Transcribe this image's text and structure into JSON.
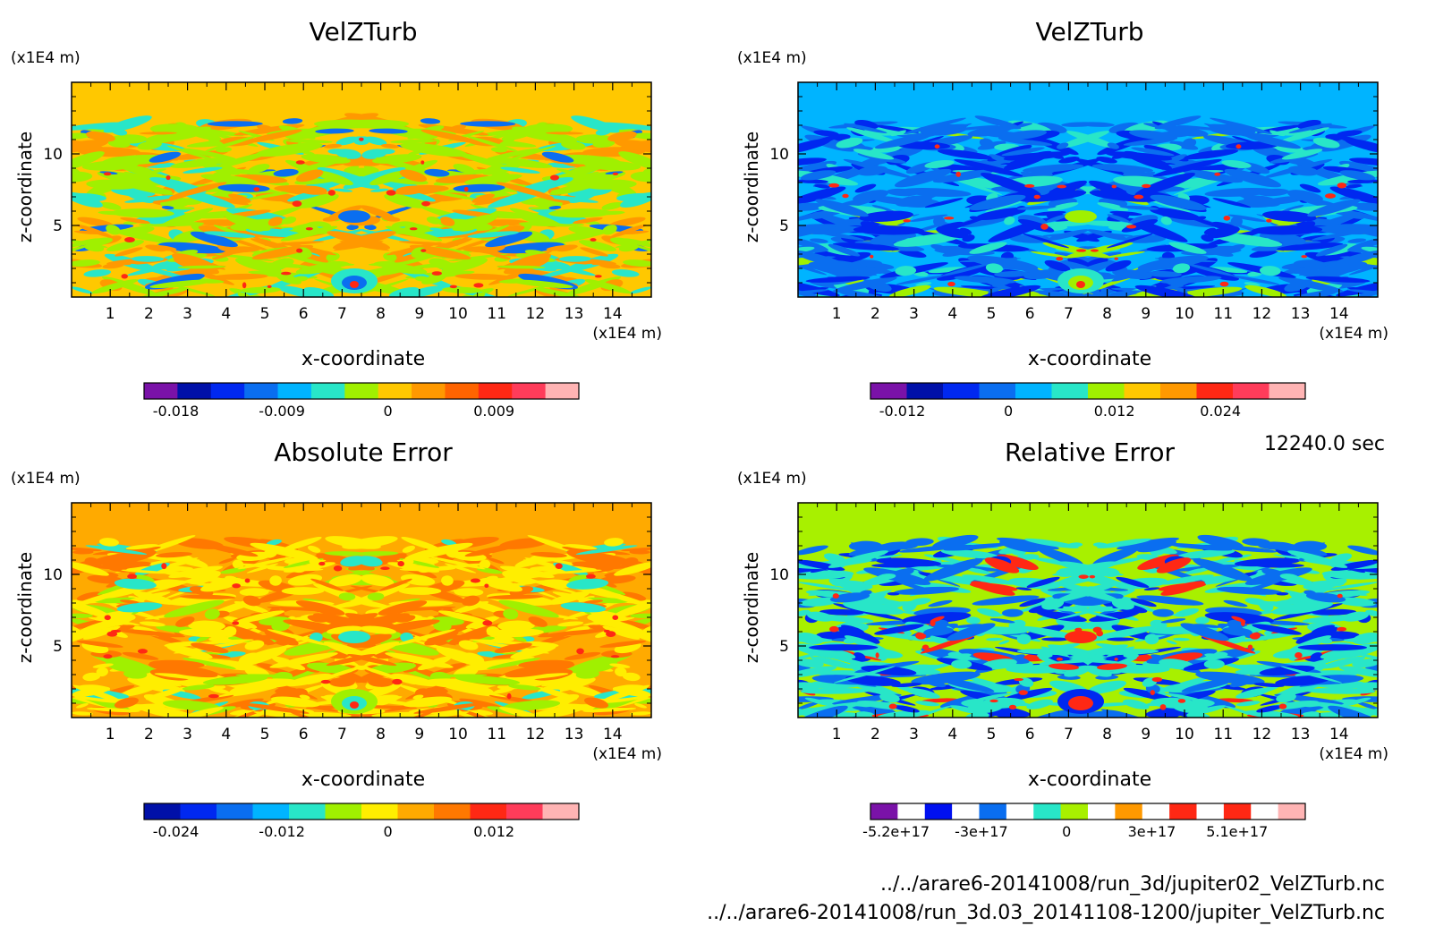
{
  "panels": [
    {
      "title": "VelZTurb",
      "yunit": "(x1E4 m)",
      "xunit": "(x1E4 m)",
      "xlabel": "x-coordinate",
      "ylabel": "z-coordinate",
      "xticks": [
        "1",
        "2",
        "3",
        "4",
        "5",
        "6",
        "7",
        "8",
        "9",
        "10",
        "11",
        "12",
        "13",
        "14"
      ],
      "yticks": [
        "5",
        "10"
      ],
      "background": "#ffc800",
      "colorbar": {
        "colors": [
          "#7a12a8",
          "#0010a8",
          "#0028f0",
          "#0a6ef0",
          "#00b4ff",
          "#28e6c8",
          "#a0f000",
          "#ffc800",
          "#ff9900",
          "#ff6400",
          "#ff2814",
          "#ff3c5a",
          "#ffb4b4"
        ],
        "labels": [
          "-0.018",
          "-0.009",
          "0",
          "0.009"
        ]
      },
      "palette": [
        "#ffc800",
        "#a0f000",
        "#ff9900",
        "#28e6c8",
        "#0a6ef0",
        "#ff2814"
      ]
    },
    {
      "title": "VelZTurb",
      "yunit": "(x1E4 m)",
      "xunit": "(x1E4 m)",
      "xlabel": "x-coordinate",
      "ylabel": "z-coordinate",
      "xticks": [
        "1",
        "2",
        "3",
        "4",
        "5",
        "6",
        "7",
        "8",
        "9",
        "10",
        "11",
        "12",
        "13",
        "14"
      ],
      "yticks": [
        "5",
        "10"
      ],
      "background": "#00b4ff",
      "colorbar": {
        "colors": [
          "#7a12a8",
          "#0010a8",
          "#0028f0",
          "#0a6ef0",
          "#00b4ff",
          "#28e6c8",
          "#a0f000",
          "#ffc800",
          "#ff9900",
          "#ff2814",
          "#ff3c5a",
          "#ffb4b4"
        ],
        "labels": [
          "-0.012",
          "0",
          "0.012",
          "0.024"
        ]
      },
      "palette": [
        "#00b4ff",
        "#0a6ef0",
        "#0028f0",
        "#28e6c8",
        "#a0f000",
        "#ff2814"
      ]
    },
    {
      "title": "Absolute Error",
      "yunit": "(x1E4 m)",
      "xunit": "(x1E4 m)",
      "xlabel": "x-coordinate",
      "ylabel": "z-coordinate",
      "xticks": [
        "1",
        "2",
        "3",
        "4",
        "5",
        "6",
        "7",
        "8",
        "9",
        "10",
        "11",
        "12",
        "13",
        "14"
      ],
      "yticks": [
        "5",
        "10"
      ],
      "background": "#ffaa00",
      "colorbar": {
        "colors": [
          "#0010a8",
          "#0028f0",
          "#0a6ef0",
          "#00b4ff",
          "#28e6c8",
          "#a0f000",
          "#ffee00",
          "#ffaa00",
          "#ff7800",
          "#ff2814",
          "#ff3c5a",
          "#ffb4b4"
        ],
        "labels": [
          "-0.024",
          "-0.012",
          "0",
          "0.012"
        ]
      },
      "palette": [
        "#ffaa00",
        "#ffee00",
        "#ff7800",
        "#a0f000",
        "#28e6c8",
        "#ff2814"
      ]
    },
    {
      "title": "Relative Error",
      "yunit": "(x1E4 m)",
      "xunit": "(x1E4 m)",
      "xlabel": "x-coordinate",
      "ylabel": "z-coordinate",
      "xticks": [
        "1",
        "2",
        "3",
        "4",
        "5",
        "6",
        "7",
        "8",
        "9",
        "10",
        "11",
        "12",
        "13",
        "14"
      ],
      "yticks": [
        "5",
        "10"
      ],
      "background": "#a8f000",
      "colorbar": {
        "colors": [
          "#7a12a8",
          "#ffffff",
          "#0010f0",
          "#ffffff",
          "#0a6ef0",
          "#ffffff",
          "#28e6c8",
          "#a8f000",
          "#ffffff",
          "#ff9900",
          "#ffffff",
          "#ff2814",
          "#ffffff",
          "#ff2814",
          "#ffffff",
          "#ffb4b4"
        ],
        "labels": [
          "-5.2e+17",
          "-3e+17",
          "0",
          "3e+17",
          "5.1e+17"
        ]
      },
      "palette": [
        "#a8f000",
        "#28e6c8",
        "#0a6ef0",
        "#0028f0",
        "#ff2814"
      ]
    }
  ],
  "time_label": "12240.0 sec",
  "file_paths": [
    "../../arare6-20141008/run_3d/jupiter02_VelZTurb.nc",
    "../../arare6-20141008/run_3d.03_20141108-1200/jupiter_VelZTurb.nc"
  ],
  "chart_data": [
    {
      "type": "heatmap",
      "title": "VelZTurb",
      "xlabel": "x-coordinate",
      "ylabel": "z-coordinate",
      "xlim": [
        0,
        15
      ],
      "ylim": [
        0,
        15
      ],
      "x_ticks": [
        1,
        2,
        3,
        4,
        5,
        6,
        7,
        8,
        9,
        10,
        11,
        12,
        13,
        14
      ],
      "y_ticks": [
        5,
        10
      ],
      "colorbar_levels": [
        -0.018,
        -0.009,
        0,
        0.009
      ]
    },
    {
      "type": "heatmap",
      "title": "VelZTurb",
      "xlabel": "x-coordinate",
      "ylabel": "z-coordinate",
      "xlim": [
        0,
        15
      ],
      "ylim": [
        0,
        15
      ],
      "x_ticks": [
        1,
        2,
        3,
        4,
        5,
        6,
        7,
        8,
        9,
        10,
        11,
        12,
        13,
        14
      ],
      "y_ticks": [
        5,
        10
      ],
      "colorbar_levels": [
        -0.012,
        0,
        0.012,
        0.024
      ]
    },
    {
      "type": "heatmap",
      "title": "Absolute Error",
      "xlabel": "x-coordinate",
      "ylabel": "z-coordinate",
      "xlim": [
        0,
        15
      ],
      "ylim": [
        0,
        15
      ],
      "x_ticks": [
        1,
        2,
        3,
        4,
        5,
        6,
        7,
        8,
        9,
        10,
        11,
        12,
        13,
        14
      ],
      "y_ticks": [
        5,
        10
      ],
      "colorbar_levels": [
        -0.024,
        -0.012,
        0,
        0.012
      ]
    },
    {
      "type": "heatmap",
      "title": "Relative Error",
      "xlabel": "x-coordinate",
      "ylabel": "z-coordinate",
      "xlim": [
        0,
        15
      ],
      "ylim": [
        0,
        15
      ],
      "x_ticks": [
        1,
        2,
        3,
        4,
        5,
        6,
        7,
        8,
        9,
        10,
        11,
        12,
        13,
        14
      ],
      "y_ticks": [
        5,
        10
      ],
      "colorbar_levels": [
        -5.2e+17,
        -3e+17,
        0,
        3e+17,
        5.1e+17
      ]
    }
  ]
}
